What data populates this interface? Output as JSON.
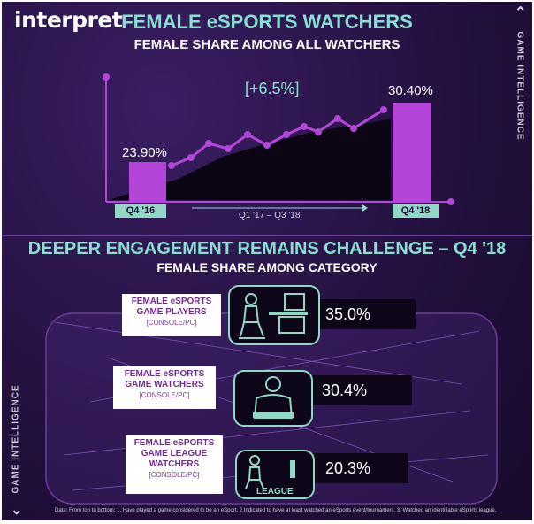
{
  "brand": "interpret",
  "side_label_right": "GAME INTELLIGENCE",
  "side_label_left": "GAME INTELLIGENCE",
  "title": "FEMALE eSPORTS WATCHERS",
  "subtitle": "FEMALE SHARE AMONG ALL WATCHERS",
  "change_label": "[+6.5%]",
  "period_label": "Q1  '17 – Q3 '18",
  "section2_title": "DEEPER ENGAGEMENT REMAINS CHALLENGE – Q4 '18",
  "section2_subtitle": "FEMALE SHARE AMONG CATEGORY",
  "league_icon_text": "LEAGUE",
  "footnote": "Data: From top to bottom: 1. Have played a game considered to be an eSport. 2 Indicated to have at least watched an eSports event/tournament. 3. Watched an identifiable eSports league.",
  "colors": {
    "accent": "#86e0cf",
    "bar": "#b346d8",
    "line": "#b346d8",
    "background": "#24113f",
    "tag": "#8fd8c6"
  },
  "chart_data": [
    {
      "type": "bar",
      "categories": [
        "Q4 '16",
        "Q4 '18"
      ],
      "values": [
        23.9,
        30.4
      ],
      "value_labels": [
        "23.90%",
        "30.40%"
      ],
      "title": "FEMALE eSPORTS WATCHERS",
      "subtitle": "FEMALE SHARE AMONG ALL WATCHERS",
      "annotation": "[+6.5%]",
      "trend": {
        "type": "line",
        "label": "Q1  '17 – Q3 '18",
        "points": 11,
        "note": "unlabeled trend line with area fill between the two bars"
      }
    },
    {
      "type": "bar",
      "title": "FEMALE SHARE AMONG CATEGORY",
      "categories": [
        {
          "line1": "FEMALE eSPORTS",
          "line2": "GAME PLAYERS",
          "line3": "[CONSOLE/PC]"
        },
        {
          "line1": "FEMALE eSPORTS",
          "line2": "GAME WATCHERS",
          "line3": "[CONSOLE/PC]"
        },
        {
          "line1": "FEMALE eSPORTS",
          "line2": "GAME LEAGUE",
          "line2b": "WATCHERS",
          "line3": "[CONSOLE/PC]"
        }
      ],
      "values": [
        35.0,
        30.4,
        20.3
      ],
      "value_labels": [
        "35.0%",
        "30.4%",
        "20.3%"
      ]
    }
  ]
}
